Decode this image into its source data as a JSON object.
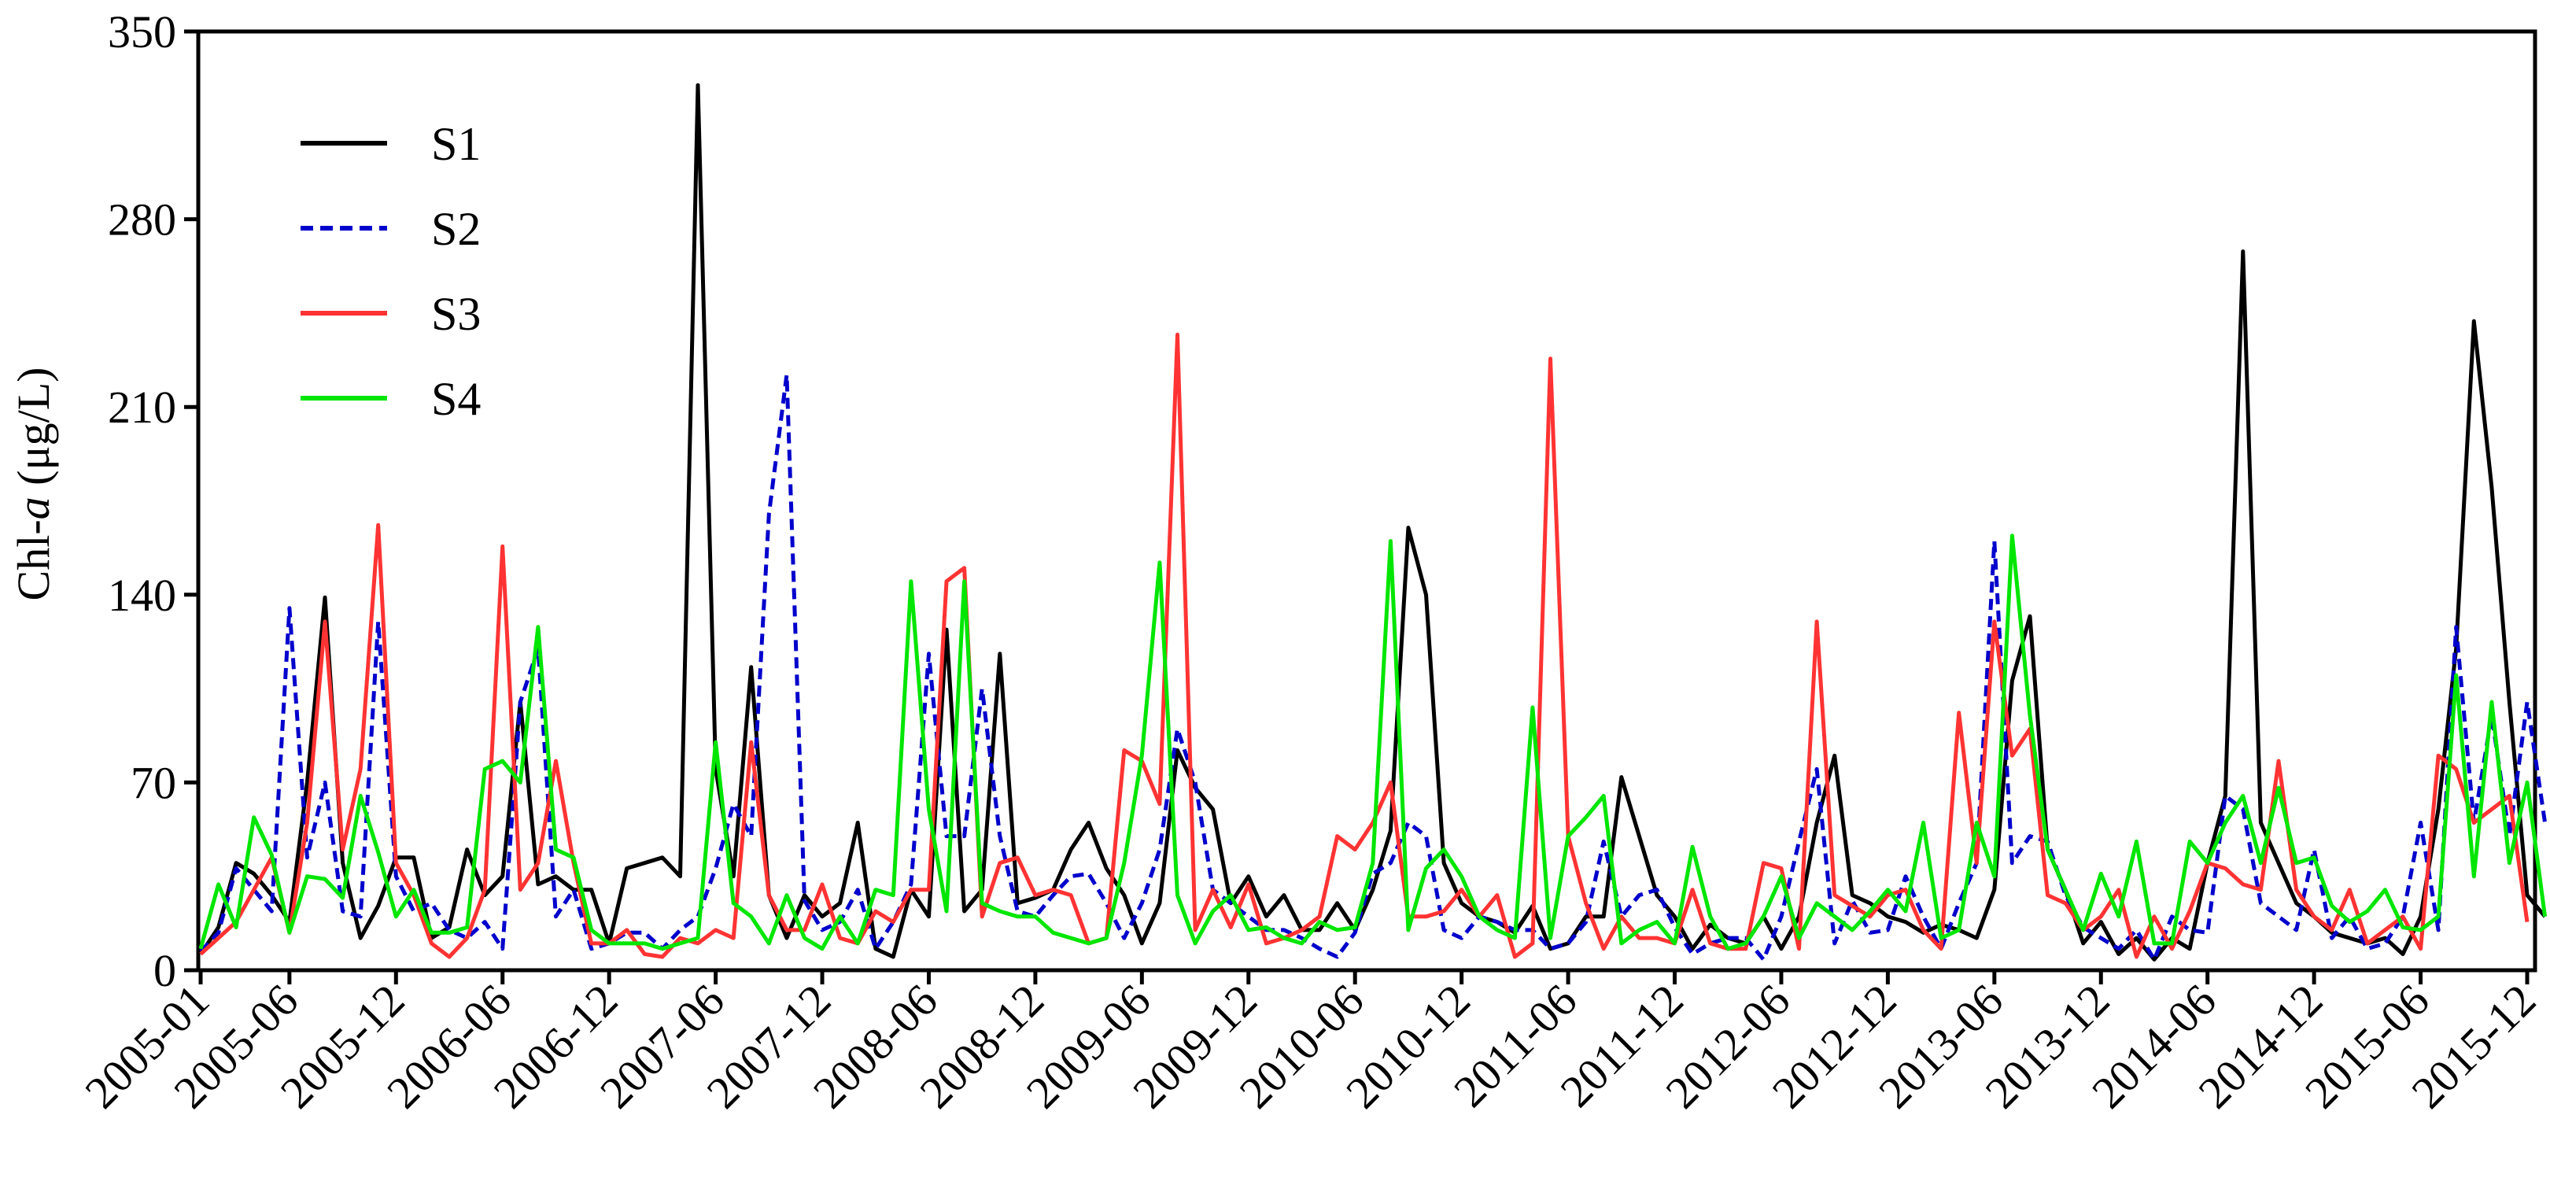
{
  "chart_data": {
    "type": "line",
    "ylabel_prefix": "Chl-",
    "ylabel_italic": "a",
    "ylabel_suffix": " (μg/L)",
    "ylim": [
      0,
      350
    ],
    "yticks": [
      0,
      70,
      140,
      210,
      280,
      350
    ],
    "x_tick_labels": [
      "2005-01",
      "2005-06",
      "2005-12",
      "2006-06",
      "2006-12",
      "2007-06",
      "2007-12",
      "2008-06",
      "2008-12",
      "2009-06",
      "2009-12",
      "2010-06",
      "2010-12",
      "2011-06",
      "2011-12",
      "2012-06",
      "2012-12",
      "2013-06",
      "2013-12",
      "2014-06",
      "2014-12",
      "2015-06",
      "2015-12"
    ],
    "x_start": "2005-01",
    "x_end": "2015-12",
    "grid": false,
    "legend_position": "top-left",
    "series": [
      {
        "name": "S1",
        "color": "#000000",
        "dash": "solid",
        "values": [
          6,
          16,
          40,
          36,
          28,
          18,
          70,
          139,
          40,
          12,
          24,
          42,
          42,
          12,
          16,
          45,
          28,
          35,
          100,
          32,
          35,
          30,
          30,
          10,
          38,
          40,
          42,
          35,
          330,
          75,
          35,
          113,
          28,
          12,
          28,
          20,
          25,
          55,
          8,
          5,
          30,
          20,
          127,
          22,
          30,
          118,
          25,
          27,
          30,
          45,
          55,
          38,
          28,
          10,
          25,
          82,
          68,
          60,
          25,
          35,
          20,
          28,
          15,
          15,
          25,
          15,
          30,
          52,
          165,
          140,
          40,
          25,
          20,
          18,
          14,
          24,
          8,
          10,
          20,
          20,
          72,
          50,
          28,
          20,
          8,
          17,
          12,
          10,
          20,
          8,
          20,
          55,
          80,
          28,
          25,
          20,
          18,
          14,
          17,
          15,
          12,
          30,
          108,
          132,
          45,
          30,
          10,
          18,
          6,
          12,
          4,
          12,
          8,
          40,
          65,
          268,
          55,
          40,
          25,
          20,
          14,
          12,
          10,
          12,
          6,
          20,
          60,
          120,
          242,
          180,
          100,
          28,
          20
        ]
      },
      {
        "name": "S2",
        "color": "#0000cc",
        "dash": "dashed",
        "values": [
          7,
          14,
          38,
          30,
          22,
          135,
          42,
          70,
          22,
          20,
          130,
          35,
          22,
          25,
          15,
          12,
          18,
          8,
          100,
          120,
          20,
          30,
          8,
          10,
          14,
          14,
          8,
          15,
          20,
          38,
          62,
          50,
          170,
          222,
          26,
          15,
          18,
          30,
          8,
          18,
          32,
          118,
          50,
          50,
          105,
          50,
          22,
          20,
          28,
          35,
          36,
          25,
          12,
          25,
          45,
          90,
          70,
          30,
          25,
          20,
          15,
          15,
          12,
          8,
          5,
          14,
          36,
          40,
          55,
          50,
          15,
          12,
          20,
          18,
          15,
          15,
          8,
          10,
          18,
          48,
          20,
          28,
          30,
          16,
          6,
          10,
          12,
          12,
          4,
          20,
          48,
          75,
          10,
          26,
          14,
          15,
          35,
          20,
          8,
          25,
          40,
          160,
          40,
          50,
          48,
          28,
          16,
          12,
          8,
          15,
          4,
          20,
          15,
          14,
          65,
          60,
          25,
          20,
          15,
          45,
          12,
          20,
          8,
          10,
          20,
          55,
          15,
          128,
          55,
          95,
          50,
          100,
          55
        ]
      },
      {
        "name": "S3",
        "color": "#ff3333",
        "dash": "solid",
        "values": [
          6,
          12,
          18,
          30,
          42,
          14,
          55,
          130,
          45,
          75,
          166,
          40,
          28,
          10,
          5,
          12,
          30,
          158,
          30,
          40,
          78,
          40,
          10,
          10,
          15,
          6,
          5,
          12,
          10,
          15,
          12,
          85,
          28,
          15,
          15,
          32,
          12,
          10,
          22,
          18,
          30,
          30,
          145,
          150,
          20,
          40,
          42,
          28,
          30,
          28,
          10,
          12,
          82,
          78,
          62,
          237,
          15,
          30,
          16,
          32,
          10,
          12,
          15,
          20,
          50,
          45,
          55,
          70,
          20,
          20,
          22,
          30,
          20,
          28,
          5,
          10,
          228,
          50,
          25,
          8,
          20,
          12,
          12,
          10,
          30,
          10,
          8,
          8,
          40,
          38,
          8,
          130,
          28,
          24,
          20,
          28,
          30,
          15,
          8,
          96,
          40,
          130,
          80,
          90,
          28,
          25,
          15,
          20,
          30,
          5,
          20,
          8,
          22,
          40,
          38,
          32,
          30,
          78,
          30,
          20,
          15,
          30,
          10,
          15,
          20,
          8,
          80,
          75,
          55,
          60,
          65,
          18
        ]
      },
      {
        "name": "S4",
        "color": "#00e600",
        "dash": "solid",
        "values": [
          8,
          32,
          16,
          57,
          43,
          14,
          35,
          34,
          27,
          65,
          44,
          20,
          30,
          14,
          14,
          16,
          75,
          78,
          70,
          128,
          45,
          42,
          15,
          10,
          10,
          10,
          8,
          10,
          12,
          85,
          25,
          20,
          10,
          28,
          12,
          8,
          20,
          10,
          30,
          28,
          145,
          60,
          22,
          145,
          25,
          22,
          20,
          20,
          14,
          12,
          10,
          12,
          40,
          80,
          152,
          28,
          10,
          22,
          28,
          15,
          16,
          12,
          10,
          18,
          15,
          16,
          40,
          160,
          15,
          38,
          45,
          35,
          20,
          15,
          12,
          98,
          12,
          50,
          57,
          65,
          10,
          15,
          18,
          10,
          46,
          20,
          8,
          10,
          20,
          35,
          12,
          25,
          20,
          15,
          22,
          30,
          22,
          55,
          12,
          15,
          55,
          35,
          162,
          95,
          45,
          30,
          15,
          36,
          20,
          48,
          10,
          10,
          48,
          40,
          55,
          65,
          40,
          68,
          40,
          42,
          24,
          18,
          22,
          30,
          16,
          15,
          20,
          110,
          35,
          100,
          40,
          70,
          20
        ]
      }
    ]
  }
}
